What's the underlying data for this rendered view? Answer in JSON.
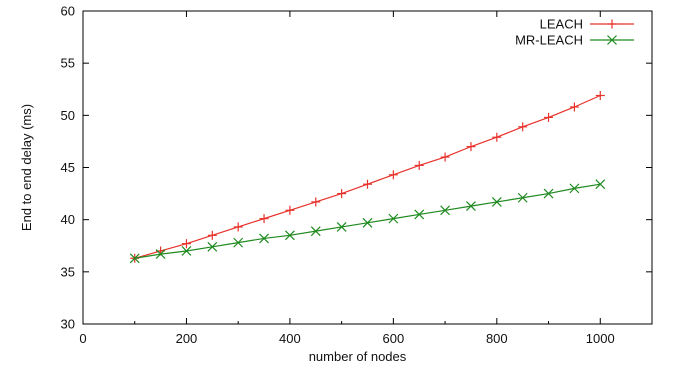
{
  "chart_data": {
    "type": "line",
    "title": "",
    "xlabel": "number of nodes",
    "ylabel": "End to end delay (ms)",
    "xlim": [
      0,
      1100
    ],
    "ylim": [
      30,
      60
    ],
    "xticks": [
      0,
      200,
      400,
      600,
      800,
      1000
    ],
    "yticks": [
      30,
      35,
      40,
      45,
      50,
      55,
      60
    ],
    "grid": false,
    "legend_position": "top-right",
    "x": [
      100,
      150,
      200,
      250,
      300,
      350,
      400,
      450,
      500,
      550,
      600,
      650,
      700,
      750,
      800,
      850,
      900,
      950,
      1000
    ],
    "series": [
      {
        "name": "LEACH",
        "color": "#e8312a",
        "marker": "plus",
        "values": [
          36.3,
          37.0,
          37.7,
          38.5,
          39.3,
          40.1,
          40.9,
          41.7,
          42.5,
          43.4,
          44.3,
          45.2,
          46.0,
          47.0,
          47.9,
          48.9,
          49.8,
          50.8,
          51.9
        ]
      },
      {
        "name": "MR-LEACH",
        "color": "#1f8a1f",
        "marker": "cross",
        "values": [
          36.3,
          36.7,
          37.0,
          37.4,
          37.8,
          38.2,
          38.5,
          38.9,
          39.3,
          39.7,
          40.1,
          40.5,
          40.9,
          41.3,
          41.7,
          42.1,
          42.5,
          43.0,
          43.4
        ]
      }
    ]
  }
}
